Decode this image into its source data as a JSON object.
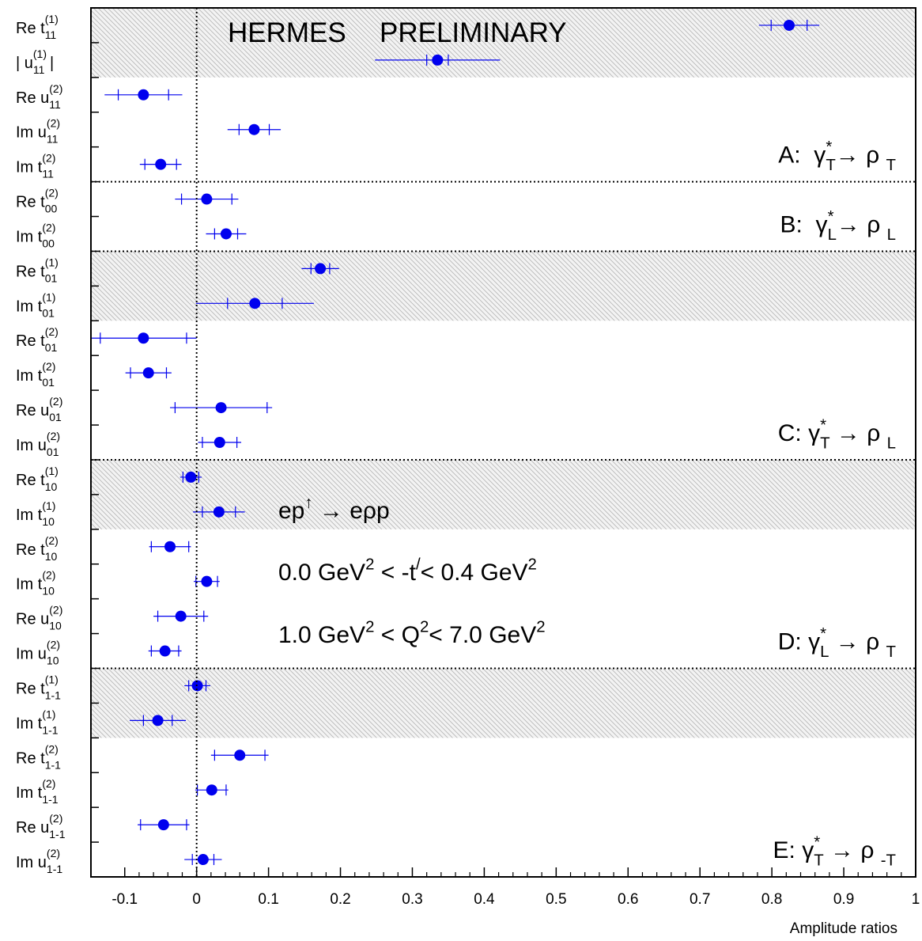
{
  "chart_data": {
    "type": "dot",
    "title": "HERMES",
    "stamp": "PRELIMINARY",
    "stamp_color": "#1a1aff",
    "color": "#0000ee",
    "xlabel": "Amplitude ratios",
    "xlim": [
      -0.147,
      1.0
    ],
    "xticks": [
      -0.1,
      0,
      0.1,
      0.2,
      0.3,
      0.4,
      0.5,
      0.6,
      0.7,
      0.8,
      0.9,
      1
    ],
    "annotations": [
      [
        {
          "text": "ep"
        },
        {
          "text": "↑",
          "pos": "sup"
        },
        {
          "text": " → eρp"
        }
      ],
      [
        {
          "text": "0.0 GeV"
        },
        {
          "text": "2",
          "pos": "sup"
        },
        {
          "text": " < -t"
        },
        {
          "text": "/",
          "pos": "sup"
        },
        {
          "text": "< 0.4 GeV"
        },
        {
          "text": "2",
          "pos": "sup"
        }
      ],
      [
        {
          "text": "1.0 GeV"
        },
        {
          "text": "2",
          "pos": "sup"
        },
        {
          "text": " < Q"
        },
        {
          "text": "2",
          "pos": "sup"
        },
        {
          "text": "< 7.0 GeV"
        },
        {
          "text": "2",
          "pos": "sup"
        }
      ]
    ],
    "sections": [
      {
        "label": [
          {
            "text": "A:  γ"
          },
          {
            "text": "*",
            "pos": "sup"
          },
          {
            "text": "T",
            "pos": "sub"
          },
          {
            "text": "→ ρ "
          },
          {
            "text": "T",
            "pos": "sub"
          }
        ],
        "rows": [
          {
            "name": "Re t",
            "sub": "11",
            "sup": "(1)",
            "value": 0.824,
            "stat": 0.025,
            "total": 0.042,
            "shaded": true
          },
          {
            "name": "| u",
            "sub": "11",
            "sup": "(1)",
            "suffix": "|",
            "value": 0.335,
            "stat": 0.015,
            "total": 0.087,
            "shaded": true
          },
          {
            "name": "Re u",
            "sub": "11",
            "sup": "(2)",
            "value": -0.074,
            "stat": 0.035,
            "total": 0.054,
            "shaded": false
          },
          {
            "name": "Im u",
            "sub": "11",
            "sup": "(2)",
            "value": 0.08,
            "stat": 0.021,
            "total": 0.037,
            "shaded": false
          },
          {
            "name": "Im t",
            "sub": "11",
            "sup": "(2)",
            "value": -0.05,
            "stat": 0.022,
            "total": 0.029,
            "shaded": false
          }
        ]
      },
      {
        "label": [
          {
            "text": "B:  γ"
          },
          {
            "text": "*",
            "pos": "sup"
          },
          {
            "text": "L",
            "pos": "sub"
          },
          {
            "text": "→ ρ "
          },
          {
            "text": "L",
            "pos": "sub"
          }
        ],
        "rows": [
          {
            "name": "Re t",
            "sub": "00",
            "sup": "(2)",
            "value": 0.014,
            "stat": 0.035,
            "total": 0.044,
            "shaded": false
          },
          {
            "name": "Im t",
            "sub": "00",
            "sup": "(2)",
            "value": 0.041,
            "stat": 0.016,
            "total": 0.028,
            "shaded": false
          }
        ]
      },
      {
        "label": [
          {
            "text": "C: γ"
          },
          {
            "text": "*",
            "pos": "sup"
          },
          {
            "text": "T",
            "pos": "sub"
          },
          {
            "text": " → ρ "
          },
          {
            "text": "L",
            "pos": "sub"
          }
        ],
        "rows": [
          {
            "name": "Re t",
            "sub": "01",
            "sup": "(1)",
            "value": 0.172,
            "stat": 0.013,
            "total": 0.026,
            "shaded": true
          },
          {
            "name": "Im t",
            "sub": "01",
            "sup": "(1)",
            "value": 0.081,
            "stat": 0.038,
            "total": 0.082,
            "shaded": true
          },
          {
            "name": "Re t",
            "sub": "01",
            "sup": "(2)",
            "value": -0.074,
            "stat": 0.06,
            "total": 0.074,
            "shaded": false
          },
          {
            "name": "Im t",
            "sub": "01",
            "sup": "(2)",
            "value": -0.067,
            "stat": 0.025,
            "total": 0.032,
            "shaded": false
          },
          {
            "name": "Re u",
            "sub": "01",
            "sup": "(2)",
            "value": 0.034,
            "stat": 0.064,
            "total": 0.071,
            "shaded": false
          },
          {
            "name": "Im u",
            "sub": "01",
            "sup": "(2)",
            "value": 0.032,
            "stat": 0.024,
            "total": 0.03,
            "shaded": false
          }
        ]
      },
      {
        "label": [
          {
            "text": "D: γ"
          },
          {
            "text": "*",
            "pos": "sup"
          },
          {
            "text": "L",
            "pos": "sub"
          },
          {
            "text": " → ρ "
          },
          {
            "text": "T",
            "pos": "sub"
          }
        ],
        "rows": [
          {
            "name": "Re t",
            "sub": "10",
            "sup": "(1)",
            "value": -0.008,
            "stat": 0.011,
            "total": 0.015,
            "shaded": true
          },
          {
            "name": "Im t",
            "sub": "10",
            "sup": "(1)",
            "value": 0.031,
            "stat": 0.023,
            "total": 0.036,
            "shaded": true
          },
          {
            "name": "Re t",
            "sub": "10",
            "sup": "(2)",
            "value": -0.037,
            "stat": 0.026,
            "total": 0.029,
            "shaded": false
          },
          {
            "name": "Im t",
            "sub": "10",
            "sup": "(2)",
            "value": 0.014,
            "stat": 0.015,
            "total": 0.018,
            "shaded": false
          },
          {
            "name": "Re u",
            "sub": "10",
            "sup": "(2)",
            "value": -0.022,
            "stat": 0.032,
            "total": 0.038,
            "shaded": false
          },
          {
            "name": "Im u",
            "sub": "10",
            "sup": "(2)",
            "value": -0.044,
            "stat": 0.019,
            "total": 0.023,
            "shaded": false
          }
        ]
      },
      {
        "label": [
          {
            "text": "E: γ"
          },
          {
            "text": "*",
            "pos": "sup"
          },
          {
            "text": "T",
            "pos": "sub"
          },
          {
            "text": " → ρ "
          },
          {
            "text": "-T",
            "pos": "sub"
          }
        ],
        "rows": [
          {
            "name": "Re t",
            "sub": "1-1",
            "sup": "(1)",
            "value": 0.001,
            "stat": 0.012,
            "total": 0.018,
            "shaded": true
          },
          {
            "name": "Im t",
            "sub": "1-1",
            "sup": "(1)",
            "value": -0.054,
            "stat": 0.02,
            "total": 0.039,
            "shaded": true
          },
          {
            "name": "Re t",
            "sub": "1-1",
            "sup": "(2)",
            "value": 0.06,
            "stat": 0.035,
            "total": 0.04,
            "shaded": false
          },
          {
            "name": "Im t",
            "sub": "1-1",
            "sup": "(2)",
            "value": 0.021,
            "stat": 0.02,
            "total": 0.023,
            "shaded": false
          },
          {
            "name": "Re u",
            "sub": "1-1",
            "sup": "(2)",
            "value": -0.046,
            "stat": 0.032,
            "total": 0.036,
            "shaded": false
          },
          {
            "name": "Im u",
            "sub": "1-1",
            "sup": "(2)",
            "value": 0.009,
            "stat": 0.015,
            "total": 0.026,
            "shaded": false
          }
        ]
      }
    ]
  }
}
